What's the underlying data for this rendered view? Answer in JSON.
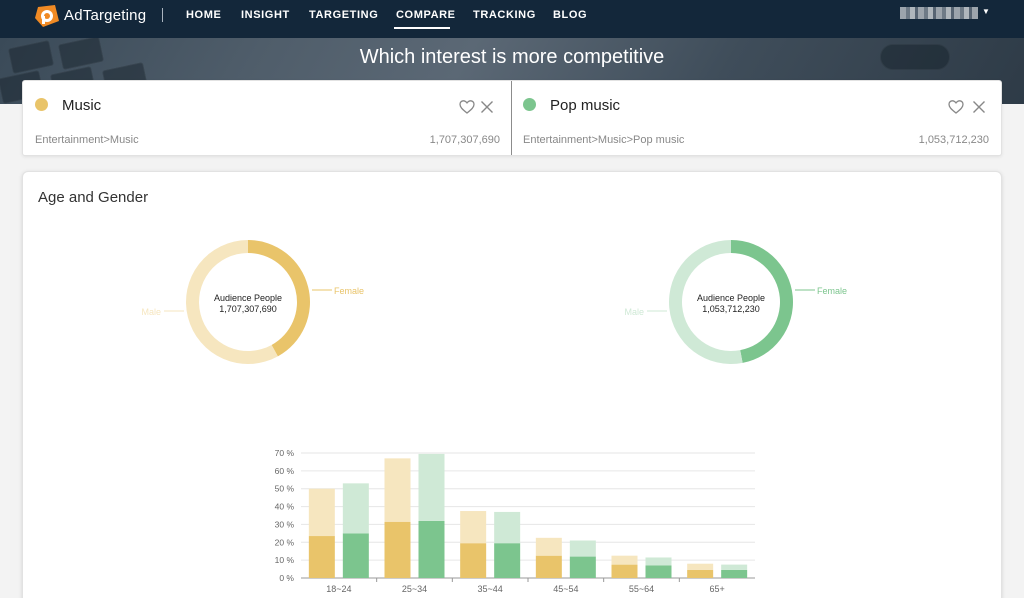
{
  "nav": {
    "brand": "AdTargeting",
    "items": [
      {
        "label": "HOME",
        "active": false
      },
      {
        "label": "INSIGHT",
        "active": false
      },
      {
        "label": "TARGETING",
        "active": false
      },
      {
        "label": "COMPARE",
        "active": true
      },
      {
        "label": "TRACKING",
        "active": false
      },
      {
        "label": "BLOG",
        "active": false
      }
    ]
  },
  "hero": {
    "title": "Which interest is more competitive"
  },
  "interests": [
    {
      "name": "Music",
      "path": "Entertainment>Music",
      "audience": "1,707,307,690",
      "color": "#e9c46a"
    },
    {
      "name": "Pop music",
      "path": "Entertainment>Music>Pop music",
      "audience": "1,053,712,230",
      "color": "#7cc58e"
    }
  ],
  "age_gender": {
    "title": "Age and Gender",
    "donut_center_label": "Audience People",
    "donut_labels": {
      "female": "Female",
      "male": "Male"
    }
  },
  "chart_data": [
    {
      "type": "pie",
      "title": "",
      "center_label": "Audience People",
      "center_value": "1,707,307,690",
      "labels": [
        "Female",
        "Male"
      ],
      "values": [
        42,
        58
      ],
      "colors": [
        "#e9c46a",
        "#f6e6bf"
      ]
    },
    {
      "type": "pie",
      "title": "",
      "center_label": "Audience People",
      "center_value": "1,053,712,230",
      "labels": [
        "Female",
        "Male"
      ],
      "values": [
        47,
        53
      ],
      "colors": [
        "#7cc58e",
        "#cfe9d6"
      ]
    },
    {
      "type": "bar",
      "stacked": true,
      "categories": [
        "18~24",
        "25~34",
        "35~44",
        "45~54",
        "55~64",
        "65+"
      ],
      "ylim": [
        0,
        70
      ],
      "yticks": [
        0,
        10,
        20,
        30,
        40,
        50,
        60,
        70
      ],
      "ytick_suffix": " %",
      "grid": true,
      "series": [
        {
          "group": "Music",
          "part": "lower",
          "values": [
            23.5,
            31.5,
            19.5,
            12.5,
            7.5,
            4.5
          ],
          "color": "#e9c46a"
        },
        {
          "group": "Music",
          "part": "upper",
          "values": [
            26.5,
            35.5,
            18.0,
            10.0,
            5.0,
            3.5
          ],
          "color": "#f6e6bf"
        },
        {
          "group": "Pop music",
          "part": "lower",
          "values": [
            25.0,
            32.0,
            19.5,
            12.0,
            7.0,
            4.5
          ],
          "color": "#7cc58e"
        },
        {
          "group": "Pop music",
          "part": "upper",
          "values": [
            28.0,
            37.5,
            17.5,
            9.0,
            4.5,
            3.0
          ],
          "color": "#cfe9d6"
        }
      ]
    }
  ]
}
